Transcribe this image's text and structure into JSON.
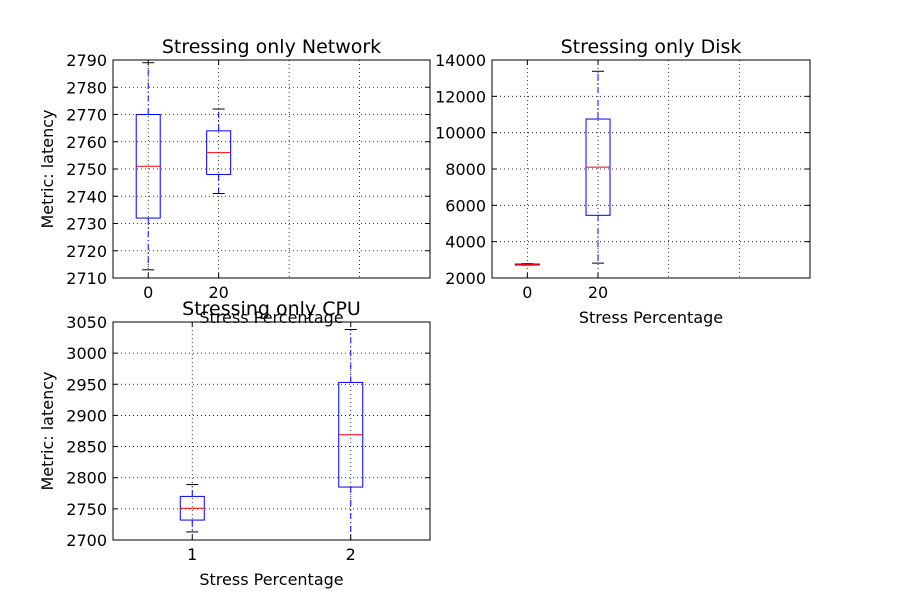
{
  "chart_data": [
    {
      "type": "boxplot",
      "title": "Stressing only Network",
      "xlabel": "Stress Percentage",
      "ylabel": "Metric: latency",
      "categories": [
        "0",
        "20"
      ],
      "positions": [
        1,
        2
      ],
      "xlim": [
        0.5,
        5
      ],
      "ylim": [
        2710,
        2790
      ],
      "yticks": [
        2710,
        2720,
        2730,
        2740,
        2750,
        2760,
        2770,
        2780,
        2790
      ],
      "grid": true,
      "boxes": [
        {
          "label": "0",
          "whisker_low": 2713,
          "q1": 2732,
          "median": 2751,
          "q3": 2770,
          "whisker_high": 2789
        },
        {
          "label": "20",
          "whisker_low": 2741,
          "q1": 2748,
          "median": 2756,
          "q3": 2764,
          "whisker_high": 2772
        }
      ]
    },
    {
      "type": "boxplot",
      "title": "Stressing only Disk",
      "xlabel": "Stress Percentage",
      "ylabel": "",
      "categories": [
        "0",
        "20"
      ],
      "positions": [
        1,
        2
      ],
      "xlim": [
        0.5,
        5
      ],
      "ylim": [
        2000,
        14000
      ],
      "yticks": [
        2000,
        4000,
        6000,
        8000,
        10000,
        12000,
        14000
      ],
      "grid": true,
      "boxes": [
        {
          "label": "0",
          "whisker_low": 2710,
          "q1": 2730,
          "median": 2750,
          "q3": 2770,
          "whisker_high": 2790
        },
        {
          "label": "20",
          "whisker_low": 2820,
          "q1": 5450,
          "median": 8100,
          "q3": 10750,
          "whisker_high": 13380
        }
      ]
    },
    {
      "type": "boxplot",
      "title": "Stressing only CPU",
      "xlabel": "Stress Percentage",
      "ylabel": "Metric: latency",
      "categories": [
        "1",
        "2"
      ],
      "positions": [
        1,
        2
      ],
      "xlim": [
        0.5,
        2.5
      ],
      "ylim": [
        2700,
        3050
      ],
      "yticks": [
        2700,
        2750,
        2800,
        2850,
        2900,
        2950,
        3000,
        3050
      ],
      "grid": true,
      "boxes": [
        {
          "label": "1",
          "whisker_low": 2713,
          "q1": 2732,
          "median": 2751,
          "q3": 2770,
          "whisker_high": 2789
        },
        {
          "label": "2",
          "whisker_low": 2700,
          "q1": 2785,
          "median": 2869,
          "q3": 2953,
          "whisker_high": 3038
        }
      ]
    }
  ]
}
